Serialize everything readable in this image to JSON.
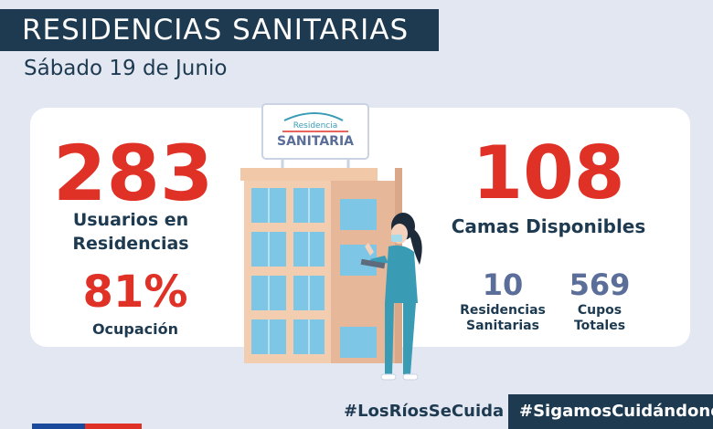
{
  "header": {
    "title": "RESIDENCIAS SANITARIAS",
    "date": "Sábado 19 de Junio"
  },
  "stats": {
    "usuarios_value": "283",
    "usuarios_label_1": "Usuarios en",
    "usuarios_label_2": "Residencias",
    "ocupacion_value": "81%",
    "ocupacion_label": "Ocupación",
    "camas_value": "108",
    "camas_label": "Camas Disponibles",
    "residencias_value": "10",
    "residencias_label_1": "Residencias",
    "residencias_label_2": "Sanitarias",
    "cupos_value": "569",
    "cupos_label_1": "Cupos",
    "cupos_label_2": "Totales"
  },
  "sign": {
    "top": "Residencia",
    "bottom": "SANITARIA"
  },
  "footer": {
    "hashtag_1": "#LosRíosSeCuida",
    "hashtag_2": "#SigamosCuidándonos"
  },
  "colors": {
    "accent_red": "#e03127",
    "navy": "#1d3a50",
    "slate_blue": "#5a6e99",
    "background": "#e3e7f2",
    "nurse_teal": "#3a9bb5"
  },
  "icons": [
    "building-illustration",
    "nurse-illustration"
  ]
}
